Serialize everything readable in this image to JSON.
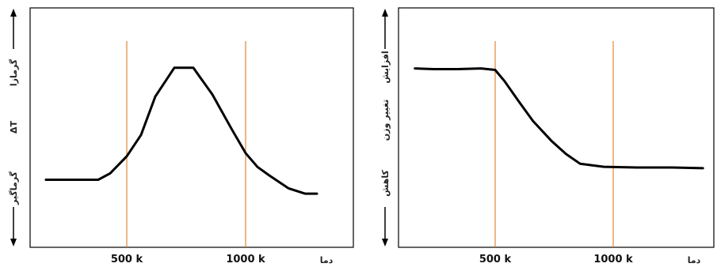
{
  "chart_data": [
    {
      "type": "line",
      "xlabel": "دما",
      "ylabel": "ΔT",
      "y_top_label": "گرمازا",
      "y_bottom_label": "گرماگیر",
      "x_ticks": [
        500,
        1000
      ],
      "x_tick_labels": [
        "500 k",
        "1000 k"
      ],
      "xlim": [
        160,
        1600
      ],
      "ylim": [
        -1.2,
        1.2
      ],
      "grid": false,
      "vlines": [
        500,
        1000
      ],
      "vline_color": "#e07b22",
      "line_color": "#000000",
      "x": [
        160,
        380,
        430,
        500,
        560,
        620,
        700,
        780,
        860,
        940,
        1000,
        1050,
        1100,
        1180,
        1250,
        1300
      ],
      "y": [
        -0.5,
        -0.5,
        -0.44,
        -0.28,
        -0.08,
        0.28,
        0.55,
        0.55,
        0.3,
        -0.02,
        -0.25,
        -0.38,
        -0.46,
        -0.58,
        -0.63,
        -0.63
      ]
    },
    {
      "type": "line",
      "xlabel": "دما",
      "ylabel": "تغییر وزن",
      "y_top_label": "افزایش",
      "y_bottom_label": "کاهش",
      "x_ticks": [
        500,
        1000
      ],
      "x_tick_labels": [
        "500 k",
        "1000 k"
      ],
      "xlim": [
        160,
        1600
      ],
      "ylim": [
        -1.2,
        1.2
      ],
      "grid": false,
      "vlines": [
        500,
        1000
      ],
      "vline_color": "#e07b22",
      "line_color": "#000000",
      "x": [
        160,
        240,
        340,
        440,
        500,
        540,
        600,
        660,
        740,
        800,
        860,
        960,
        1100,
        1250,
        1380
      ],
      "y": [
        0.72,
        0.71,
        0.71,
        0.72,
        0.7,
        0.55,
        0.28,
        0.02,
        -0.25,
        -0.42,
        -0.55,
        -0.59,
        -0.6,
        -0.6,
        -0.61
      ]
    }
  ]
}
